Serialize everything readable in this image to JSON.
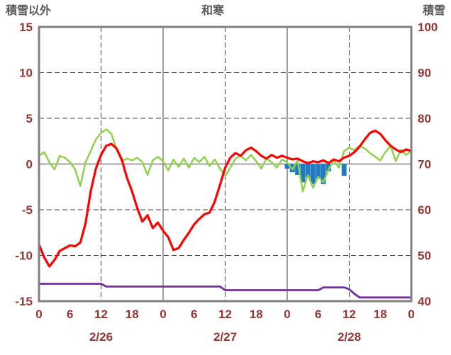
{
  "chart_data": {
    "type": "line",
    "title": "和寒",
    "axis_titles": {
      "left": "積雪以外",
      "right": "積雪"
    },
    "y_left": {
      "min": -15,
      "max": 15,
      "tick_values": [
        15,
        10,
        5,
        0,
        -5,
        -10,
        -15
      ],
      "tick_labels": [
        "15",
        "10",
        "5",
        "0",
        "-5",
        "-10",
        "-15"
      ]
    },
    "y_right": {
      "min": 40,
      "max": 100,
      "tick_values": [
        100,
        90,
        80,
        70,
        60,
        50,
        40
      ],
      "tick_labels": [
        "100",
        "90",
        "80",
        "70",
        "60",
        "50",
        "40"
      ]
    },
    "x": {
      "hours_total": 72,
      "tick_step": 6,
      "tick_labels": [
        "0",
        "6",
        "12",
        "18",
        "0",
        "6",
        "12",
        "18",
        "0",
        "6",
        "12",
        "18",
        "0"
      ],
      "date_labels": [
        "2/26",
        "2/27",
        "2/28"
      ],
      "date_center_hours": [
        12,
        36,
        60
      ]
    },
    "gridlines": {
      "horizontal_dashed_at": [
        10,
        5,
        -5,
        -10
      ],
      "vertical_dashed_at_hours": [
        12,
        36,
        60
      ],
      "vertical_solid_at_hours": [
        24,
        48
      ],
      "zero_line_at": 0
    },
    "series": [
      {
        "name": "purple-line-snow-depth",
        "axis": "right",
        "color": "#7030A0",
        "width": 2.8,
        "values": [
          43.8,
          43.8,
          43.8,
          43.8,
          43.8,
          43.8,
          43.8,
          43.8,
          43.8,
          43.8,
          43.8,
          43.8,
          43.8,
          43.2,
          43.2,
          43.2,
          43.2,
          43.2,
          43.2,
          43.2,
          43.2,
          43.2,
          43.2,
          43.2,
          43.2,
          43.2,
          43.2,
          43.2,
          43.2,
          43.2,
          43.2,
          43.2,
          43.2,
          43.2,
          43.2,
          43.2,
          42.4,
          42.4,
          42.4,
          42.4,
          42.4,
          42.4,
          42.4,
          42.4,
          42.4,
          42.4,
          42.4,
          42.4,
          42.4,
          42.4,
          42.4,
          42.4,
          42.4,
          42.4,
          42.4,
          43.0,
          43.0,
          43.0,
          43.0,
          43.0,
          42.6,
          41.6,
          40.8,
          40.8,
          40.8,
          40.8,
          40.8,
          40.8,
          40.8,
          40.8,
          40.8,
          40.8,
          40.8
        ]
      },
      {
        "name": "green-line",
        "axis": "left",
        "color": "#92D050",
        "width": 2.5,
        "values": [
          0.9,
          1.3,
          0.2,
          -0.6,
          0.9,
          0.7,
          0.2,
          -0.6,
          -2.4,
          0.2,
          1.4,
          2.7,
          3.4,
          3.8,
          3.3,
          1.6,
          0.3,
          0.6,
          0.4,
          0.7,
          0.2,
          -1.2,
          0.4,
          0.8,
          0.3,
          -0.7,
          0.5,
          -0.3,
          0.6,
          -0.4,
          0.7,
          0.2,
          0.8,
          -0.2,
          0.5,
          -0.5,
          -1.3,
          -0.4,
          0.6,
          0.9,
          0.4,
          1.0,
          0.3,
          -0.5,
          0.6,
          0.2,
          -0.4,
          0.5,
          0.2,
          -0.6,
          0.4,
          -3.0,
          -1.2,
          -2.6,
          -1.4,
          -2.0,
          -0.6,
          0.4,
          -0.4,
          1.4,
          1.8,
          1.5,
          2.0,
          1.7,
          1.2,
          0.8,
          0.4,
          1.3,
          2.0,
          0.3,
          1.6,
          1.0,
          1.4
        ]
      },
      {
        "name": "red-line-temperature",
        "axis": "left",
        "color": "#FF0000",
        "width": 3.2,
        "values": [
          -8.8,
          -10.2,
          -11.2,
          -10.5,
          -9.5,
          -9.2,
          -8.9,
          -9.0,
          -8.6,
          -6.5,
          -3.0,
          -0.5,
          1.0,
          2.0,
          2.2,
          1.7,
          0.5,
          -1.5,
          -3.0,
          -4.8,
          -6.3,
          -5.6,
          -7.0,
          -6.4,
          -7.3,
          -8.0,
          -9.4,
          -9.2,
          -8.3,
          -7.5,
          -6.6,
          -6.0,
          -5.5,
          -5.3,
          -4.1,
          -2.3,
          -0.4,
          0.7,
          1.2,
          0.9,
          1.5,
          1.8,
          1.4,
          0.9,
          0.6,
          1.0,
          0.7,
          0.9,
          0.7,
          0.5,
          0.6,
          0.3,
          0.1,
          0.3,
          0.2,
          0.4,
          0.1,
          0.5,
          0.3,
          0.7,
          0.9,
          1.3,
          1.9,
          2.7,
          3.4,
          3.65,
          3.3,
          2.6,
          2.0,
          1.6,
          1.3,
          1.6,
          1.45
        ]
      }
    ],
    "bars": {
      "name": "blue-bars",
      "axis": "left",
      "color": "#1F7AC2",
      "points": [
        {
          "hour": 48,
          "value": -0.5
        },
        {
          "hour": 49,
          "value": -0.9
        },
        {
          "hour": 50,
          "value": -1.2
        },
        {
          "hour": 51,
          "value": -2.0
        },
        {
          "hour": 52,
          "value": -1.5
        },
        {
          "hour": 53,
          "value": -2.2
        },
        {
          "hour": 54,
          "value": -1.6
        },
        {
          "hour": 55,
          "value": -2.2
        },
        {
          "hour": 56,
          "value": -0.8
        },
        {
          "hour": 59,
          "value": -1.3
        }
      ]
    },
    "colors": {
      "tick_text": "#943634",
      "title_text": "#595959",
      "frame": "#808080",
      "grid_dashed": "#3F3F3F",
      "grid_solid": "#808080"
    }
  }
}
